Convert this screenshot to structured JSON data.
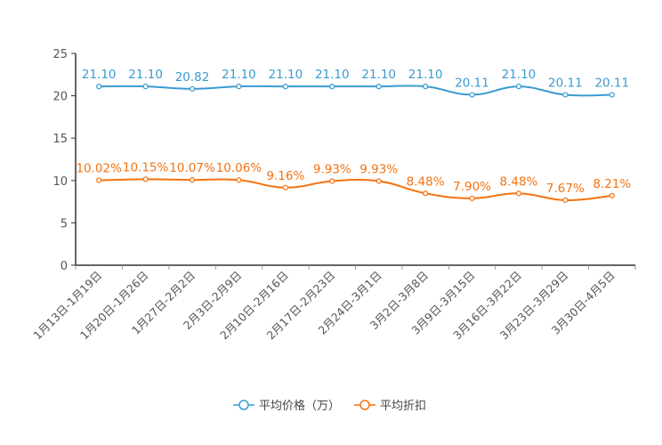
{
  "chart_data": {
    "type": "line",
    "title": "",
    "xlabel": "",
    "ylabel": "",
    "ylim": [
      0,
      25
    ],
    "yticks": [
      0,
      5,
      10,
      15,
      20,
      25
    ],
    "grid": false,
    "legend_position": "bottom-center",
    "categories": [
      "1月13日-1月19日",
      "1月20日-1月26日",
      "1月27日-2月2日",
      "2月3日-2月9日",
      "2月10日-2月16日",
      "2月17日-2月23日",
      "2月24日-3月1日",
      "3月2日-3月8日",
      "3月9日-3月15日",
      "3月16日-3月22日",
      "3月23日-3月29日",
      "3月30日-4月5日"
    ],
    "series": [
      {
        "name": "平均价格（万）",
        "color": "#3a9bd1",
        "values": [
          21.1,
          21.1,
          20.82,
          21.1,
          21.1,
          21.1,
          21.1,
          21.1,
          20.11,
          21.1,
          20.11,
          20.11
        ],
        "labels": [
          "21.10",
          "21.10",
          "20.82",
          "21.10",
          "21.10",
          "21.10",
          "21.10",
          "21.10",
          "20.11",
          "21.10",
          "20.11",
          "20.11"
        ]
      },
      {
        "name": "平均折扣",
        "color": "#f5720f",
        "values": [
          10.02,
          10.15,
          10.07,
          10.06,
          9.16,
          9.93,
          9.93,
          8.48,
          7.9,
          8.48,
          7.67,
          8.21
        ],
        "labels": [
          "10.02%",
          "10.15%",
          "10.07%",
          "10.06%",
          "9.16%",
          "9.93%",
          "9.93%",
          "8.48%",
          "7.90%",
          "8.48%",
          "7.67%",
          "8.21%"
        ]
      }
    ]
  }
}
